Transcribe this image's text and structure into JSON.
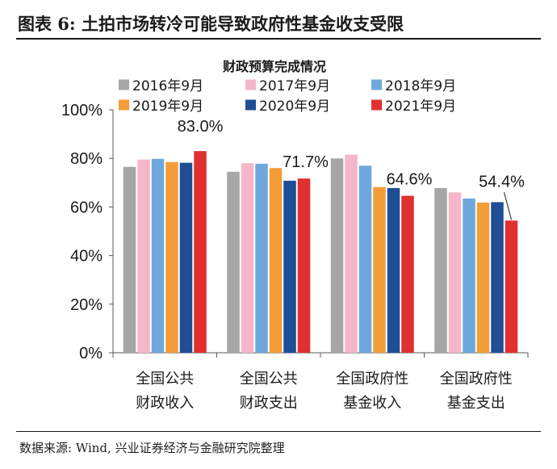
{
  "figure": {
    "title": "图表 6:  土拍市场转冷可能导致政府性基金收支受限",
    "source": "数据来源: Wind, 兴业证券经济与金融研究院整理"
  },
  "chart_data": {
    "type": "bar",
    "title": "财政预算完成情况",
    "categories": [
      [
        "全国公共",
        "财政收入"
      ],
      [
        "全国公共",
        "财政支出"
      ],
      [
        "全国政府性",
        "基金收入"
      ],
      [
        "全国政府性",
        "基金支出"
      ]
    ],
    "series": [
      {
        "name": "2016年9月",
        "color": "#a6a6a6",
        "values": [
          76.5,
          74.5,
          80.0,
          67.8
        ]
      },
      {
        "name": "2017年9月",
        "color": "#f4b6c8",
        "values": [
          79.5,
          78.0,
          81.5,
          66.0
        ]
      },
      {
        "name": "2018年9月",
        "color": "#6fa8dc",
        "values": [
          79.8,
          77.8,
          77.0,
          63.5
        ]
      },
      {
        "name": "2019年9月",
        "color": "#f29d38",
        "values": [
          78.5,
          76.0,
          68.2,
          61.8
        ]
      },
      {
        "name": "2020年9月",
        "color": "#1f4e96",
        "values": [
          78.2,
          70.8,
          67.8,
          62.0
        ]
      },
      {
        "name": "2021年9月",
        "color": "#e0302f",
        "values": [
          83.0,
          71.7,
          64.6,
          54.4
        ]
      }
    ],
    "data_labels": [
      "83.0%",
      "71.7%",
      "64.6%",
      "54.4%"
    ],
    "y_ticks": [
      "0%",
      "20%",
      "40%",
      "60%",
      "80%",
      "100%"
    ],
    "ylim": [
      0,
      100
    ],
    "legend_position": "top",
    "grid": false
  }
}
